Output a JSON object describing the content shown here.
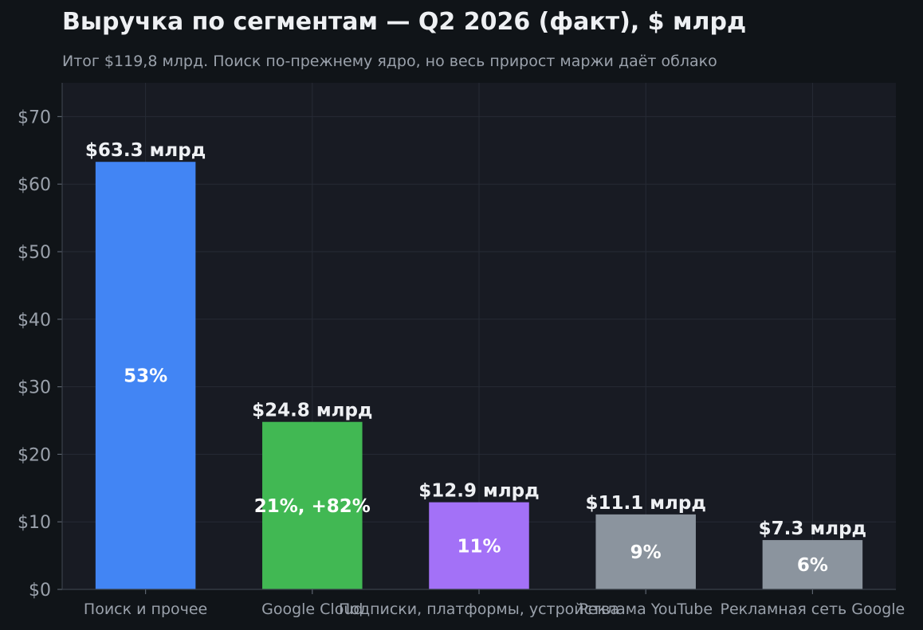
{
  "header": {
    "title": "Выручка по сегментам — Q2 2026 (факт), $ млрд",
    "subtitle": "Итог $119,8 млрд. Поиск по-прежнему ядро, но весь прирост маржи даёт облако"
  },
  "chart_data": {
    "type": "bar",
    "title": "Выручка по сегментам — Q2 2026 (факт), $ млрд",
    "subtitle": "Итог $119,8 млрд. Поиск по-прежнему ядро, но весь прирост маржи даёт облако",
    "categories": [
      "Поиск и прочее",
      "Google Cloud",
      "Подписки, платформы, устройства",
      "Реклама YouTube",
      "Рекламная сеть Google"
    ],
    "values": [
      63.3,
      24.8,
      12.9,
      11.1,
      7.3
    ],
    "value_labels": [
      "$63.3 млрд",
      "$24.8 млрд",
      "$12.9 млрд",
      "$11.1 млрд",
      "$7.3 млрд"
    ],
    "share_labels": [
      "53%",
      "21%, +82%",
      "11%",
      "9%",
      "6%"
    ],
    "colors": [
      "#4285f4",
      "#41b853",
      "#a371f7",
      "#8b949e",
      "#8b949e"
    ],
    "xlabel": "",
    "ylabel": "",
    "ylim": [
      0,
      75
    ],
    "yticks": [
      0,
      10,
      20,
      30,
      40,
      50,
      60,
      70
    ],
    "ytick_labels": [
      "$0",
      "$10",
      "$20",
      "$30",
      "$40",
      "$50",
      "$60",
      "$70"
    ],
    "grid": true,
    "legend": "none"
  }
}
